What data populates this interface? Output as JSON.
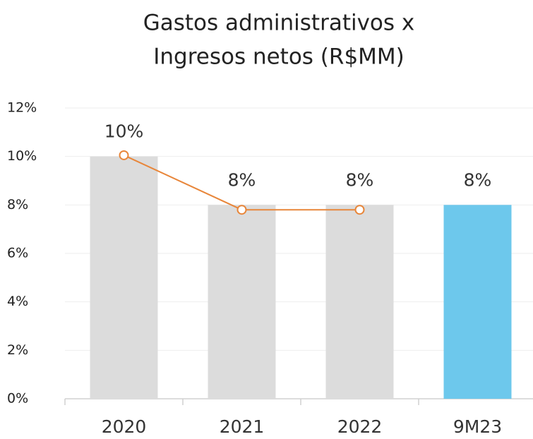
{
  "chart_data": {
    "type": "bar_line",
    "title": [
      "Gastos administrativos x",
      "Ingresos netos (R$MM)"
    ],
    "categories": [
      "2020",
      "2021",
      "2022",
      "9M23"
    ],
    "series": [
      {
        "type": "bar",
        "colors": [
          "#dcdcdc",
          "#dcdcdc",
          "#dcdcdc",
          "#6dc8ec"
        ],
        "values": [
          10,
          8,
          8,
          8
        ],
        "value_labels": [
          "10%",
          "8%",
          "8%",
          "8%"
        ]
      },
      {
        "type": "line",
        "color": "#e8863a",
        "values": [
          10.05,
          7.8,
          7.8,
          null
        ]
      }
    ],
    "ylim": [
      0,
      12
    ],
    "yticks": [
      {
        "value": 0,
        "label": "0%"
      },
      {
        "value": 2,
        "label": "2%"
      },
      {
        "value": 4,
        "label": "4%"
      },
      {
        "value": 6,
        "label": "6%"
      },
      {
        "value": 8,
        "label": "8%"
      },
      {
        "value": 10,
        "label": "10%"
      },
      {
        "value": 12,
        "label": "12%"
      }
    ],
    "grid": true
  }
}
